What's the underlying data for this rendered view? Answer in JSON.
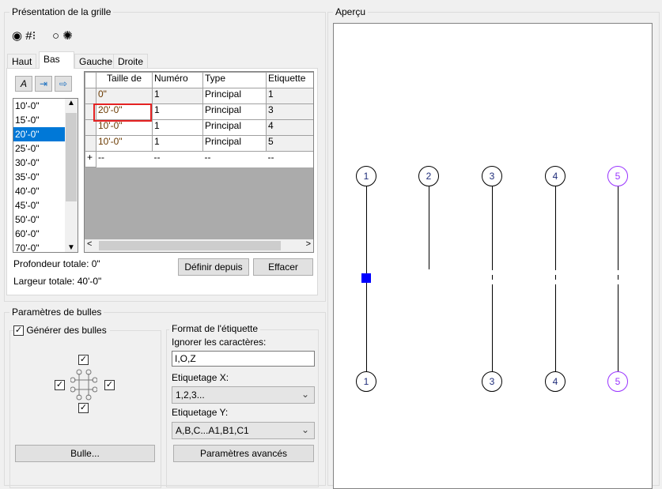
{
  "grid_presentation": {
    "title": "Présentation de la grille",
    "options": [
      "rectangular",
      "radial"
    ],
    "selected": "rectangular"
  },
  "tabs": [
    {
      "label": "Haut"
    },
    {
      "label": "Bas",
      "active": true
    },
    {
      "label": "Gauche"
    },
    {
      "label": "Droite"
    }
  ],
  "toolbar_icons": [
    "edit-text-icon",
    "insert-row-icon",
    "append-row-icon"
  ],
  "size_list": {
    "items": [
      "10'-0\"",
      "15'-0\"",
      "20'-0\"",
      "25'-0\"",
      "30'-0\"",
      "35'-0\"",
      "40'-0\"",
      "45'-0\"",
      "50'-0\"",
      "60'-0\"",
      "70'-0\""
    ],
    "selected": "20'-0\""
  },
  "table": {
    "headers": [
      "Taille de",
      "Numéro",
      "Type",
      "Etiquette"
    ],
    "rows": [
      [
        "0\"",
        "1",
        "Principal",
        "1"
      ],
      [
        "20'-0\"",
        "1",
        "Principal",
        "3"
      ],
      [
        "10'-0\"",
        "1",
        "Principal",
        "4"
      ],
      [
        "10'-0\"",
        "1",
        "Principal",
        "5"
      ]
    ],
    "new_row": [
      "--",
      "--",
      "--",
      "--"
    ],
    "new_row_marker": "+"
  },
  "totals": {
    "depth": "Profondeur totale: 0\"",
    "width": "Largeur totale: 40'-0\""
  },
  "buttons": {
    "define_from": "Définir depuis",
    "clear": "Effacer",
    "bubble": "Bulle...",
    "advanced": "Paramètres avancés"
  },
  "bubble_params": {
    "title": "Paramètres de bulles",
    "generate_label": "Générer des bulles",
    "generate_checked": true,
    "top": true,
    "left": true,
    "right": true,
    "bottom": true
  },
  "label_format": {
    "title": "Format de l'étiquette",
    "ignore_label": "Ignorer les caractères:",
    "ignore_value": "I,O,Z",
    "x_label": "Etiquetage X:",
    "x_value": "1,2,3...",
    "y_label": "Etiquetage Y:",
    "y_value": "A,B,C...A1,B1,C1"
  },
  "preview": {
    "title": "Aperçu",
    "top_bubbles": [
      "1",
      "2",
      "3",
      "4",
      "5"
    ],
    "bottom_bubbles": [
      "1",
      "3",
      "4",
      "5"
    ],
    "highlight_color": "#9933ff",
    "selected_marker_color": "#0000ff"
  }
}
